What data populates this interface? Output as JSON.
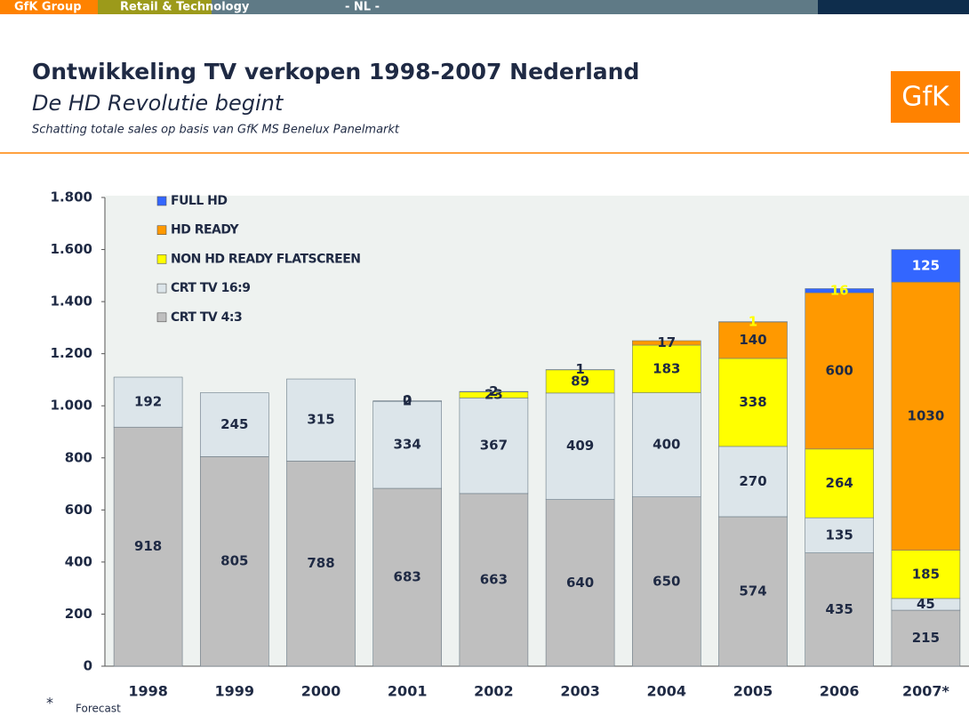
{
  "header": {
    "tabs": [
      "GfK Group",
      "Retail & Technology",
      "- NL -"
    ],
    "logo": "GfK"
  },
  "chart_data": {
    "type": "stacked_bar",
    "title": "Ontwikkeling TV verkopen 1998-2007 Nederland",
    "subtitle": "De HD Revolutie begint",
    "caption": "Schatting totale sales op basis van GfK MS Benelux Panelmarkt",
    "footnote": [
      "*",
      "Forecast"
    ],
    "categories": [
      "1998",
      "1999",
      "2000",
      "2001",
      "2002",
      "2003",
      "2004",
      "2005",
      "2006",
      "2007*"
    ],
    "series": [
      {
        "name": "CRT TV 4:3",
        "color": "#bfbfbf",
        "values": [
          918,
          805,
          788,
          683,
          663,
          640,
          650,
          574,
          435,
          215
        ]
      },
      {
        "name": "CRT TV 16:9",
        "color": "#dce5ea",
        "values": [
          192,
          245,
          315,
          334,
          367,
          409,
          400,
          270,
          135,
          45
        ]
      },
      {
        "name": "NON HD READY FLATSCREEN",
        "color": "#ffff00",
        "values": [
          null,
          null,
          null,
          2,
          23,
          89,
          183,
          338,
          264,
          185
        ]
      },
      {
        "name": "HD READY",
        "color": "#ff9900",
        "values": [
          null,
          null,
          null,
          0,
          2,
          1,
          17,
          140,
          600,
          1030
        ]
      },
      {
        "name": "FULL HD",
        "color": "#3366ff",
        "values": [
          null,
          null,
          null,
          null,
          null,
          null,
          null,
          1,
          16,
          125
        ]
      }
    ],
    "ylim": [
      0,
      1800
    ],
    "yticks": [
      0,
      200,
      400,
      600,
      800,
      {
        "value": 1000,
        "label": "1.000"
      },
      {
        "value": 1200,
        "label": "1.200"
      },
      {
        "value": 1400,
        "label": "1.400"
      },
      {
        "value": 1600,
        "label": "1.600"
      },
      {
        "value": 1800,
        "label": "1.800"
      }
    ],
    "legend": "top-left"
  }
}
